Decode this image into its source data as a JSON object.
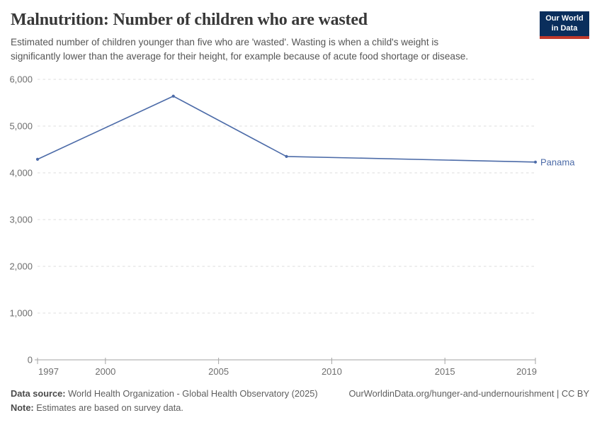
{
  "header": {
    "title": "Malnutrition: Number of children who are wasted",
    "subtitle": "Estimated number of children younger than five who are 'wasted'. Wasting is when a child's weight is significantly lower than the average for their height, for example because of acute food shortage or disease.",
    "logo": {
      "line1": "Our World",
      "line2": "in Data"
    }
  },
  "chart_data": {
    "type": "line",
    "title": "Malnutrition: Number of children who are wasted",
    "series": [
      {
        "name": "Panama",
        "color": "#4c6ba8",
        "x": [
          1997,
          2003,
          2008,
          2019
        ],
        "values": [
          4290,
          5640,
          4350,
          4230
        ]
      }
    ],
    "end_label": "Panama",
    "xlabel": "",
    "ylabel": "",
    "xlim": [
      1997,
      2019
    ],
    "ylim": [
      0,
      6000
    ],
    "xticks": [
      {
        "v": 1997,
        "label": "1997"
      },
      {
        "v": 2000,
        "label": "2000"
      },
      {
        "v": 2005,
        "label": "2005"
      },
      {
        "v": 2010,
        "label": "2010"
      },
      {
        "v": 2015,
        "label": "2015"
      },
      {
        "v": 2019,
        "label": "2019"
      }
    ],
    "yticks": [
      {
        "v": 0,
        "label": "0"
      },
      {
        "v": 1000,
        "label": "1,000"
      },
      {
        "v": 2000,
        "label": "2,000"
      },
      {
        "v": 3000,
        "label": "3,000"
      },
      {
        "v": 4000,
        "label": "4,000"
      },
      {
        "v": 5000,
        "label": "5,000"
      },
      {
        "v": 6000,
        "label": "6,000"
      }
    ],
    "grid": "horizontal-dashed",
    "legend_position": "end-of-line"
  },
  "colors": {
    "line": "#4c6ba8",
    "grid": "#dcdcdc",
    "axis": "#a3a3a3",
    "tick_text": "#6e6e6e",
    "logo_bg": "#0a2e5c",
    "logo_stripe": "#c0392b"
  },
  "footer": {
    "data_source_label": "Data source:",
    "data_source": " World Health Organization - Global Health Observatory (2025)",
    "link": "OurWorldinData.org/hunger-and-undernourishment | CC BY",
    "note_label": "Note:",
    "note": " Estimates are based on survey data."
  }
}
